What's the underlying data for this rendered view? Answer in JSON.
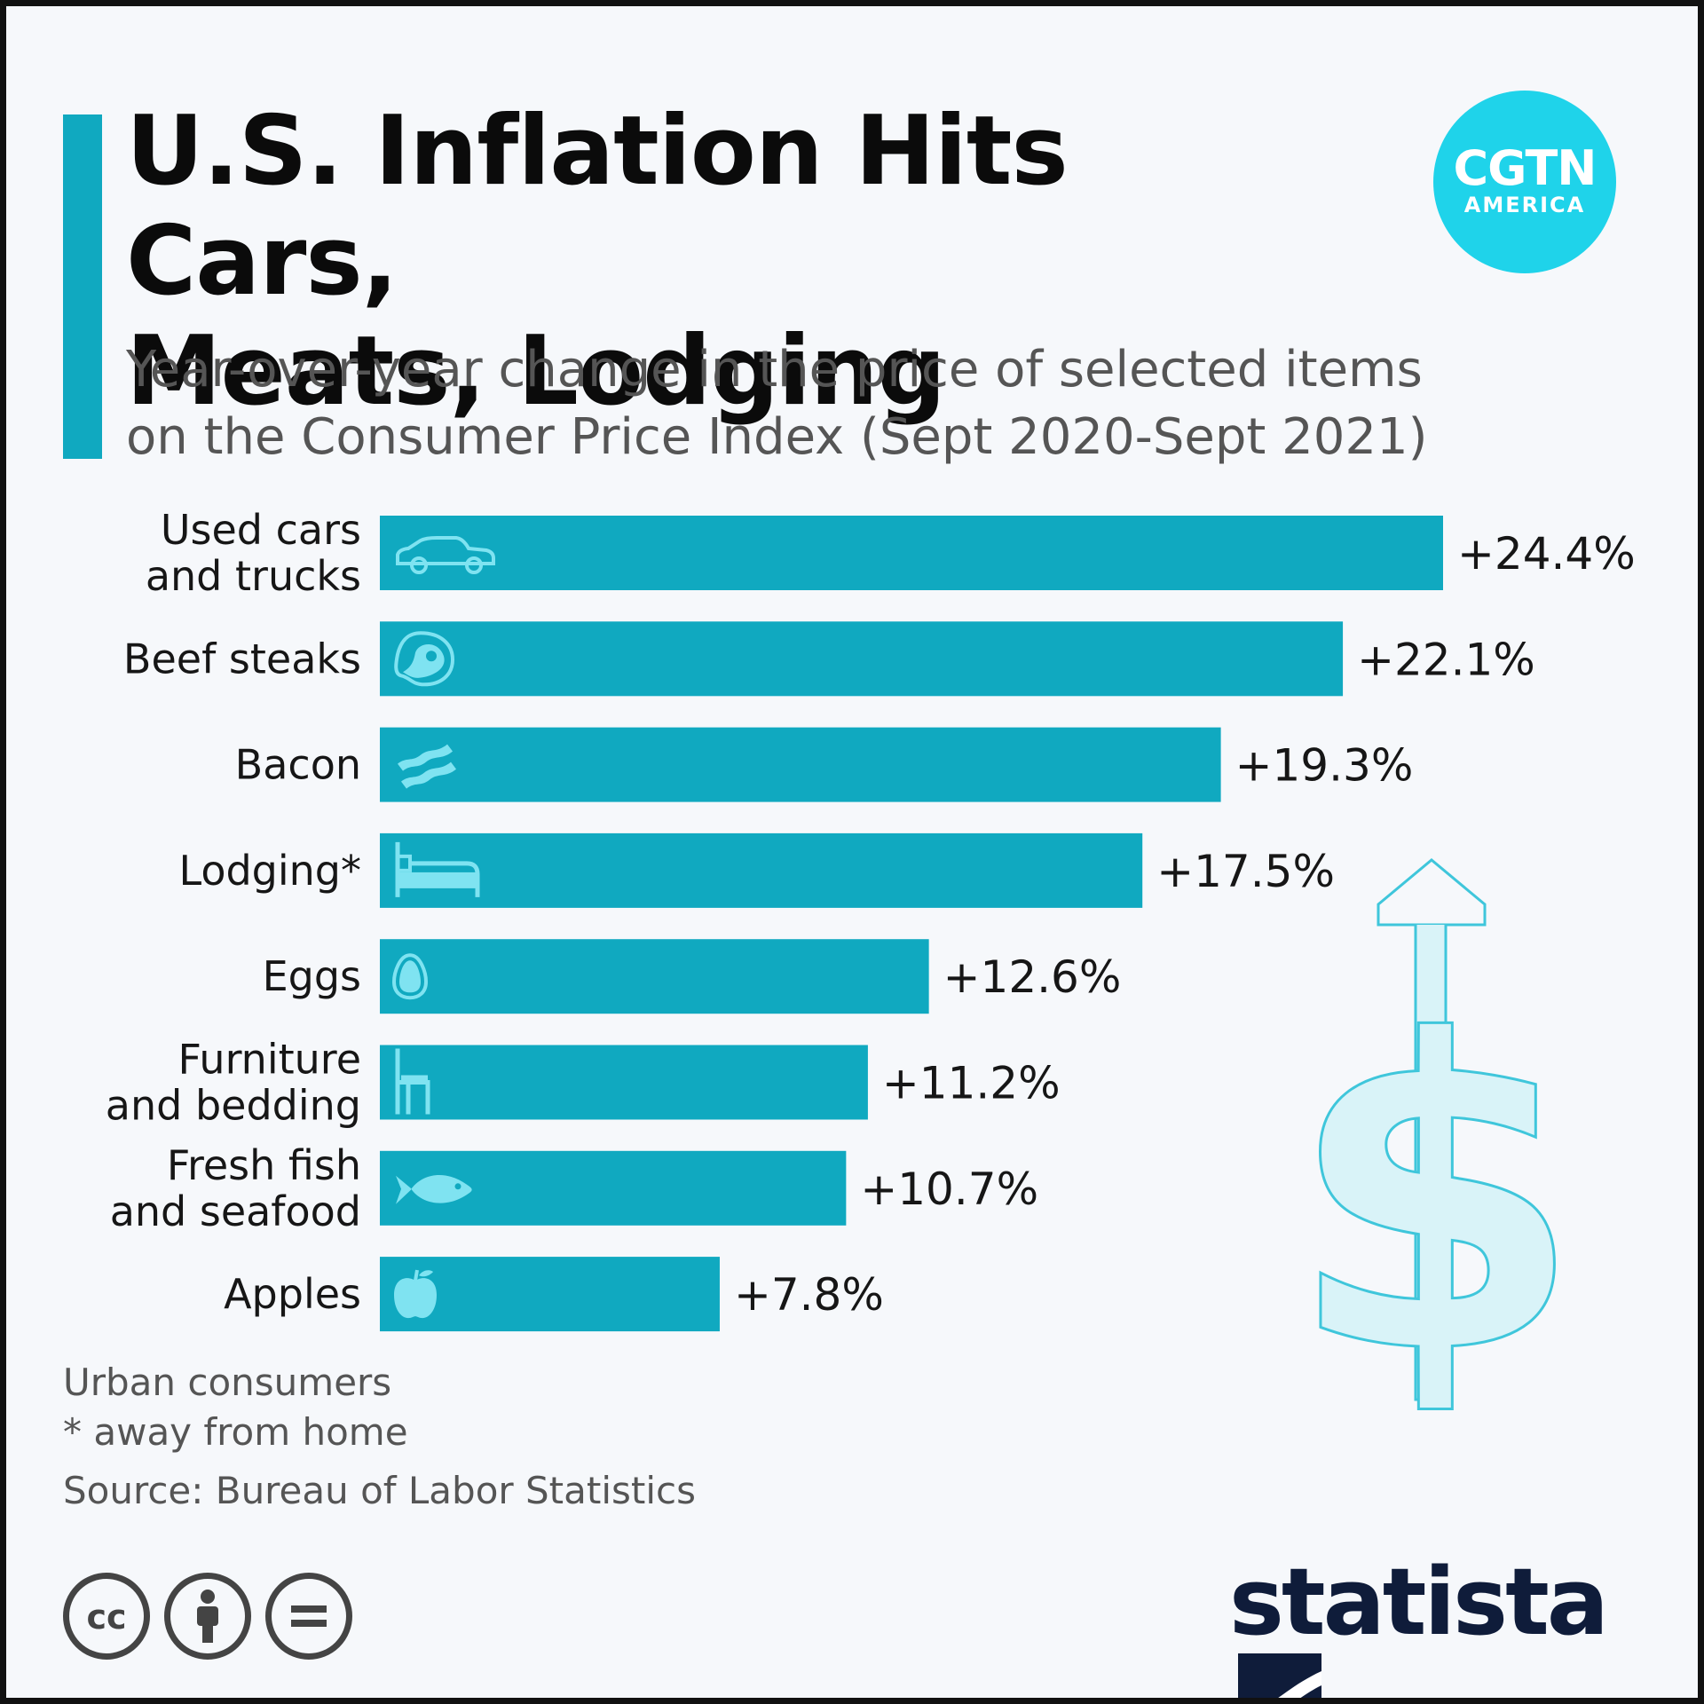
{
  "header": {
    "title_lines": [
      "U.S. Inflation Hits Cars,",
      "Meats, Lodging"
    ],
    "subtitle_lines": [
      "Year-over-year change in the price of selected items",
      "on the Consumer Price Index (Sept 2020-Sept 2021)"
    ]
  },
  "brand": {
    "cgtn_line1": "CGTN",
    "cgtn_line2": "AMERICA",
    "statista": "statista"
  },
  "footnotes": {
    "line1": "Urban consumers",
    "line2": "* away from home",
    "source": "Source: Bureau of Labor Statistics"
  },
  "colors": {
    "bar": "#10a9c0",
    "accent": "#10a9c0",
    "icon": "#7fe3f1",
    "dollar_fill": "#d9f3f8",
    "dollar_stroke": "#3fc6db",
    "cgtn": "#1fd3ea",
    "statista": "#0f1c3a"
  },
  "chart_data": {
    "type": "bar",
    "orientation": "horizontal",
    "title": "U.S. Inflation Hits Cars, Meats, Lodging",
    "xlabel": "",
    "ylabel": "",
    "xlim": [
      0,
      24.4
    ],
    "unit": "%",
    "grid": false,
    "categories": [
      [
        "Used cars",
        "and trucks"
      ],
      [
        "Beef steaks"
      ],
      [
        "Bacon"
      ],
      [
        "Lodging*"
      ],
      [
        "Eggs"
      ],
      [
        "Furniture",
        "and bedding"
      ],
      [
        "Fresh fish",
        "and seafood"
      ],
      [
        "Apples"
      ]
    ],
    "values": [
      24.4,
      22.1,
      19.3,
      17.5,
      12.6,
      11.2,
      10.7,
      7.8
    ],
    "value_labels": [
      "+24.4%",
      "+22.1%",
      "+19.3%",
      "+17.5%",
      "+12.6%",
      "+11.2%",
      "+10.7%",
      "+7.8%"
    ],
    "icons": [
      "car-icon",
      "steak-icon",
      "bacon-icon",
      "bed-icon",
      "egg-icon",
      "chair-icon",
      "fish-icon",
      "apple-icon"
    ]
  }
}
